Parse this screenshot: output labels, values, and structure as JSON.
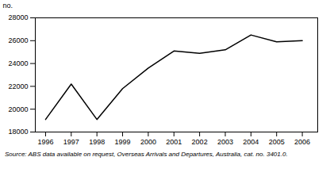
{
  "chart_data": {
    "type": "line",
    "x": [
      1996,
      1997,
      1998,
      1999,
      2000,
      2001,
      2002,
      2003,
      2004,
      2005,
      2006
    ],
    "values": [
      19100,
      22200,
      19100,
      21800,
      23600,
      25100,
      24900,
      25200,
      26500,
      25900,
      26000
    ],
    "xlim": [
      1995.6,
      2006.6
    ],
    "xticks": [
      1996,
      1997,
      1998,
      1999,
      2000,
      2001,
      2002,
      2003,
      2004,
      2005,
      2006
    ],
    "ylim": [
      18000,
      28000
    ],
    "yticks": [
      18000,
      20000,
      22000,
      24000,
      26000,
      28000
    ],
    "ylabel": "no.",
    "caption": "Source: ABS data available on request,  Overseas Arrivals and Departures, Australia, cat.  no.  3401.0.",
    "color": "#000000",
    "grid": false
  }
}
